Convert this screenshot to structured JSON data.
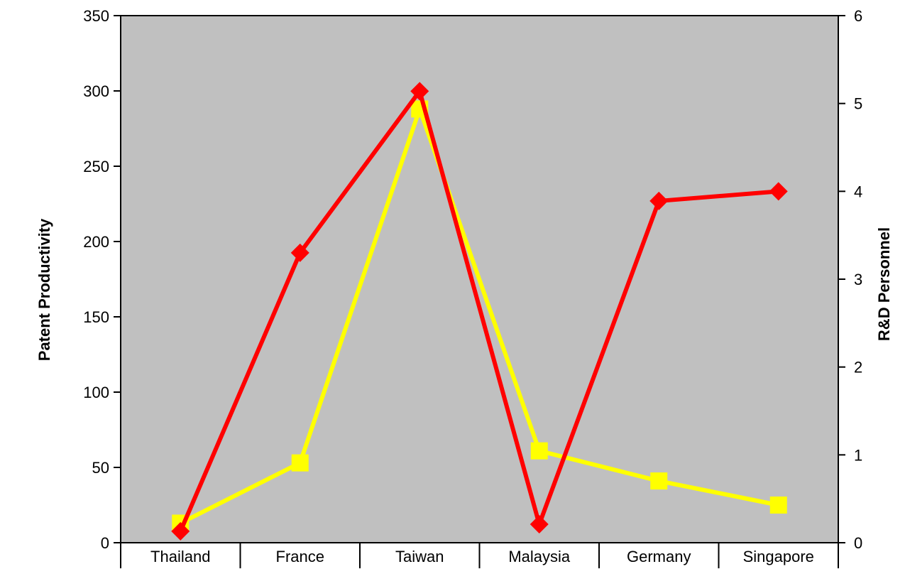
{
  "chart_data": {
    "type": "line",
    "categories": [
      "Thailand",
      "France",
      "Taiwan",
      "Malaysia",
      "Germany",
      "Singapore"
    ],
    "series": [
      {
        "axis": "left",
        "color": "#FFFF00",
        "marker": "square",
        "values": [
          13,
          53,
          288,
          61,
          41,
          25
        ]
      },
      {
        "axis": "right",
        "color": "#FF0000",
        "marker": "diamond",
        "values": [
          0.13,
          3.3,
          5.14,
          0.21,
          3.89,
          4.0
        ]
      }
    ],
    "ylabel": "Patent Productivity",
    "y2label": "R&D Personnel",
    "ylim": [
      0,
      350
    ],
    "y2lim": [
      0,
      6
    ],
    "yticks": [
      "0",
      "50",
      "100",
      "150",
      "200",
      "250",
      "300",
      "350"
    ],
    "y2ticks": [
      "0",
      "1",
      "2",
      "3",
      "4",
      "5",
      "6"
    ],
    "plot_background": "#C0C0C0",
    "grid": false,
    "legend": "none"
  }
}
